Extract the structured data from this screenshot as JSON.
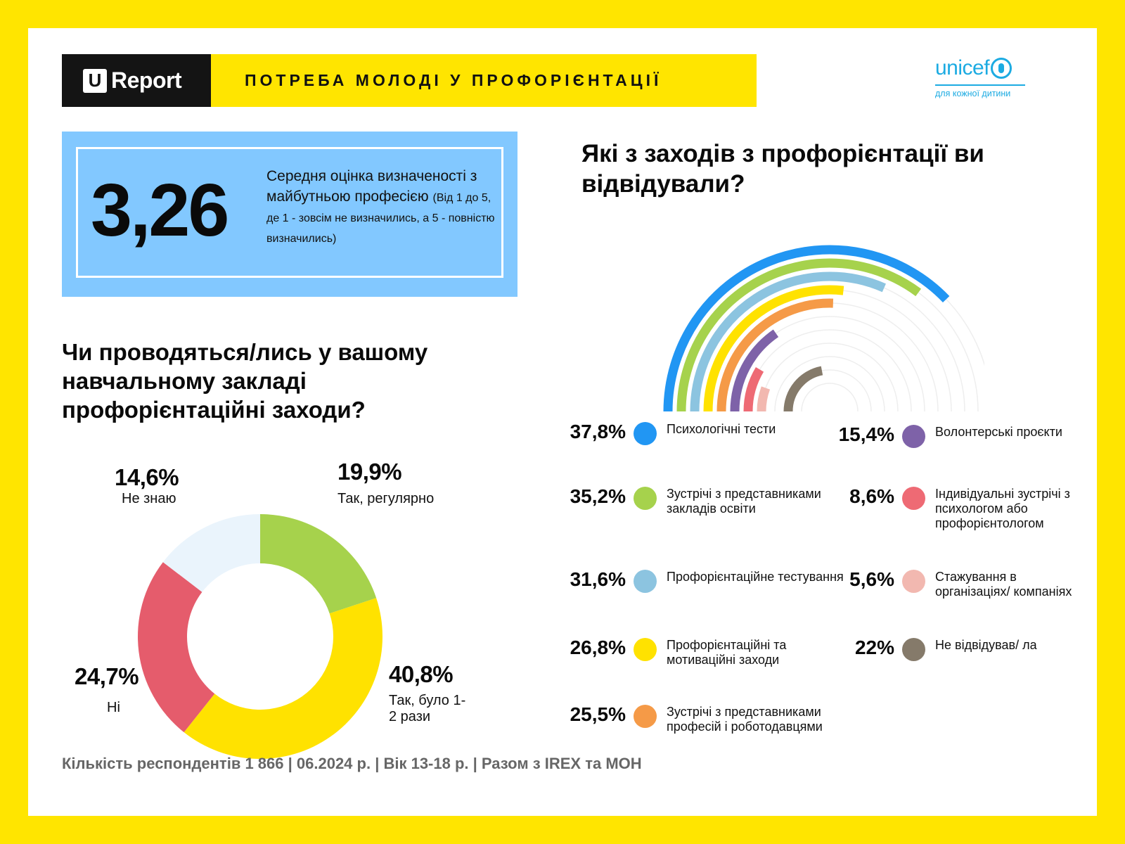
{
  "header": {
    "logo_u": "U",
    "logo_text": "Report",
    "title": "ПОТРЕБА МОЛОДІ У ПРОФОРІЄНТАЦІЇ"
  },
  "partner": {
    "name": "unicef",
    "tagline": "для кожної дитини"
  },
  "score": {
    "value": "3,26",
    "description": "Середня оцінка визначеності з майбутньою професією",
    "scale_note": "(Від 1 до 5, де 1 - зовсім не визначились, а 5 - повністю визначились)"
  },
  "left_question": "Чи проводяться/лись у вашому навчальному закладі профорієнтаційні заходи?",
  "right_question": "Які з заходів з профорієнтації ви відвідували?",
  "chart_data": [
    {
      "type": "pie",
      "variant": "donut",
      "title": "Чи проводяться/лись у вашому навчальному закладі профорієнтаційні заходи?",
      "slices": [
        {
          "label": "Так, регулярно",
          "value": 19.9,
          "display": "19,9%",
          "color": "#A6D24C"
        },
        {
          "label": "Так, було 1-2 рази",
          "value": 40.8,
          "display": "40,8%",
          "color": "#FFE200"
        },
        {
          "label": "Ні",
          "value": 24.7,
          "display": "24,7%",
          "color": "#E55C6C"
        },
        {
          "label": "Не знаю",
          "value": 14.6,
          "display": "14,6%",
          "color": "#EAF4FC"
        }
      ]
    },
    {
      "type": "bar",
      "variant": "radial",
      "title": "Які з заходів з профорієнтації ви відвідували?",
      "max": 50,
      "items": [
        {
          "label": "Психологічні тести",
          "value": 37.8,
          "display": "37,8%",
          "color": "#2196F3"
        },
        {
          "label": "Зустрічі з представниками закладів освіти",
          "value": 35.2,
          "display": "35,2%",
          "color": "#A6D24C"
        },
        {
          "label": "Профорієнтаційне тестування",
          "value": 31.6,
          "display": "31,6%",
          "color": "#8CC4E0"
        },
        {
          "label": "Профорієнтаційні та мотиваційні заходи",
          "value": 26.8,
          "display": "26,8%",
          "color": "#FFE200"
        },
        {
          "label": "Зустрічі з представниками професій і роботодавцями",
          "value": 25.5,
          "display": "25,5%",
          "color": "#F59A47"
        },
        {
          "label": "Волонтерські проєкти",
          "value": 15.4,
          "display": "15,4%",
          "color": "#7E62A8"
        },
        {
          "label": "Індивідуальні зустрічі з психологом або профорієнтологом",
          "value": 8.6,
          "display": "8,6%",
          "color": "#EE6A74"
        },
        {
          "label": "Стажування в організаціях/ компаніях",
          "value": 5.6,
          "display": "5,6%",
          "color": "#F2B8B0"
        },
        {
          "label": "Не відвідував/ ла",
          "value": 22,
          "display": "22%",
          "color": "#857A6A"
        }
      ]
    }
  ],
  "footer": "Кількість респондентів 1 866 | 06.2024 р. | Вік 13-18 р. | Разом з IREX та МОН"
}
